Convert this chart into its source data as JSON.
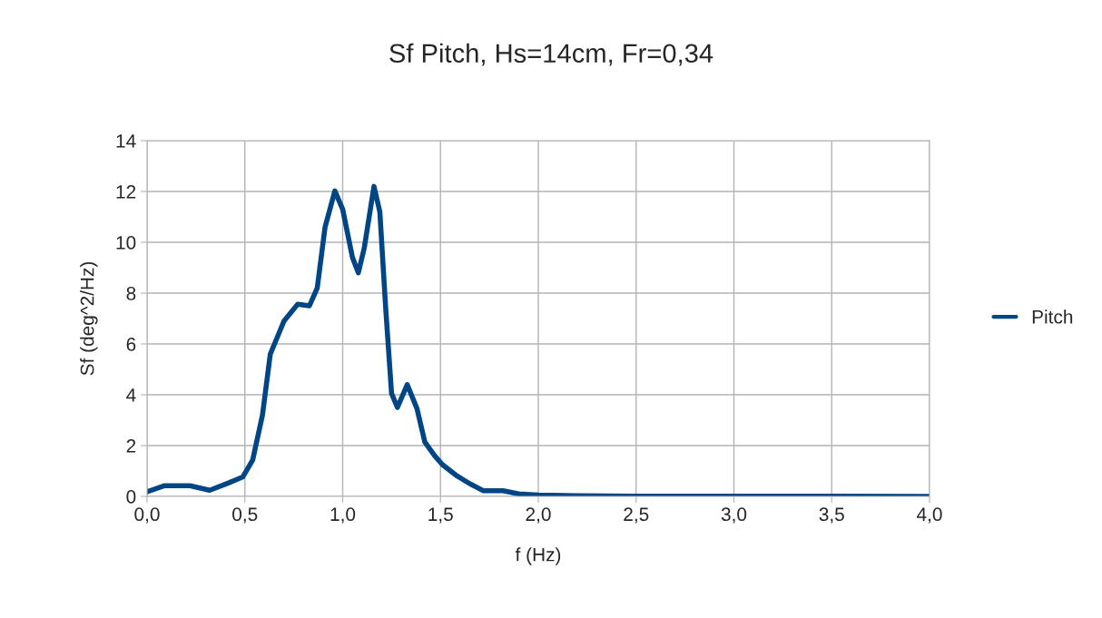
{
  "chart_data": {
    "type": "line",
    "title": "Sf Pitch, Hs=14cm, Fr=0,34",
    "xlabel": "f (Hz)",
    "ylabel": "Sf (deg^2/Hz)",
    "series": [
      {
        "name": "Pitch",
        "color": "#004586",
        "x": [
          0,
          0.09,
          0.22,
          0.32,
          0.42,
          0.49,
          0.54,
          0.59,
          0.63,
          0.7,
          0.77,
          0.83,
          0.87,
          0.91,
          0.96,
          1.0,
          1.05,
          1.08,
          1.11,
          1.16,
          1.19,
          1.22,
          1.25,
          1.28,
          1.33,
          1.38,
          1.42,
          1.47,
          1.51,
          1.58,
          1.65,
          1.72,
          1.82,
          1.9,
          2.0,
          2.2,
          2.5,
          3.0,
          3.5,
          4.0
        ],
        "values": [
          0.18,
          0.42,
          0.42,
          0.24,
          0.54,
          0.77,
          1.43,
          3.2,
          5.6,
          6.9,
          7.56,
          7.5,
          8.2,
          10.6,
          12.02,
          11.3,
          9.4,
          8.8,
          9.76,
          12.2,
          11.2,
          7.4,
          4.05,
          3.5,
          4.4,
          3.45,
          2.14,
          1.6,
          1.25,
          0.83,
          0.5,
          0.22,
          0.22,
          0.1,
          0.05,
          0.03,
          0.01,
          0.01,
          0.01,
          0
        ]
      }
    ],
    "xlim": [
      0,
      4
    ],
    "xticks": [
      {
        "value": 0,
        "label": "0,0"
      },
      {
        "value": 0.5,
        "label": "0,5"
      },
      {
        "value": 1,
        "label": "1,0"
      },
      {
        "value": 1.5,
        "label": "1,5"
      },
      {
        "value": 2,
        "label": "2,0"
      },
      {
        "value": 2.5,
        "label": "2,5"
      },
      {
        "value": 3,
        "label": "3,0"
      },
      {
        "value": 3.5,
        "label": "3,5"
      },
      {
        "value": 4,
        "label": "4,0"
      }
    ],
    "ylim": [
      0,
      14
    ],
    "yticks": [
      0,
      2,
      4,
      6,
      8,
      10,
      12,
      14
    ],
    "grid": true,
    "legend": "right",
    "marker": "none",
    "line_style": "solid"
  }
}
